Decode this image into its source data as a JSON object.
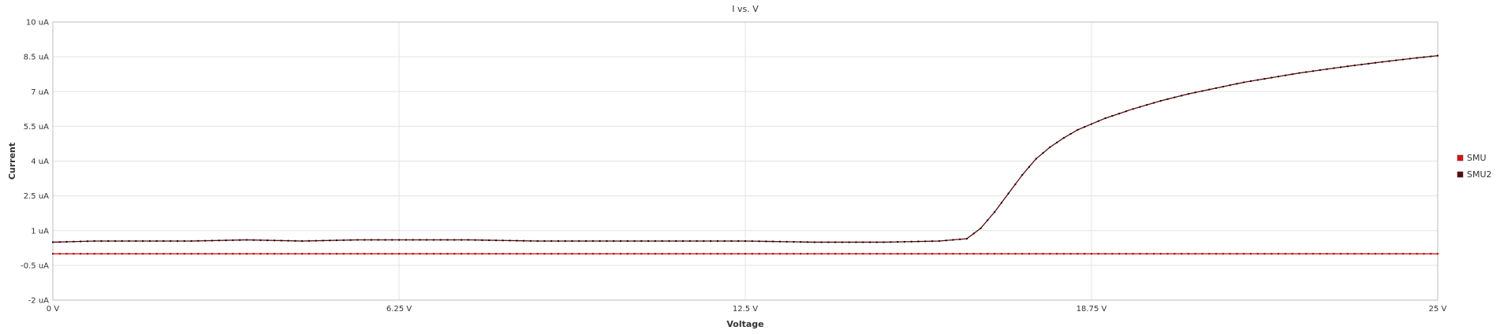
{
  "chart_data": {
    "type": "line",
    "title": "I vs. V",
    "xlabel": "Voltage",
    "ylabel": "Current",
    "xlim": [
      0,
      25
    ],
    "ylim": [
      -2,
      10
    ],
    "x_unit": "V",
    "y_unit": "uA",
    "x_ticks": [
      0,
      6.25,
      12.5,
      18.75,
      25
    ],
    "x_tick_labels": [
      "0 V",
      "6.25 V",
      "12.5 V",
      "18.75 V",
      "25 V"
    ],
    "y_ticks": [
      -2,
      -0.5,
      1,
      2.5,
      4,
      5.5,
      7,
      8.5,
      10
    ],
    "y_tick_labels": [
      "-2 uA",
      "-0.5 uA",
      "1 uA",
      "2.5 uA",
      "4 uA",
      "5.5 uA",
      "7 uA",
      "8.5 uA",
      "10 uA"
    ],
    "grid": true,
    "legend_position": "right",
    "series": [
      {
        "name": "SMU",
        "color": "#e01010",
        "x": [
          0,
          2.5,
          5,
          7.5,
          10,
          12.5,
          15,
          17.5,
          20,
          22.5,
          25
        ],
        "y": [
          0,
          0,
          0,
          0,
          0,
          0,
          0,
          0,
          0,
          0,
          0
        ]
      },
      {
        "name": "SMU2",
        "color": "#5a0a0a",
        "x": [
          0,
          0.75,
          1.5,
          2.5,
          3.5,
          4.5,
          5.5,
          6.25,
          7.5,
          8.75,
          10,
          11.25,
          12.5,
          13.75,
          15,
          16,
          16.5,
          16.75,
          17,
          17.25,
          17.5,
          17.75,
          18,
          18.25,
          18.5,
          18.75,
          19,
          19.5,
          20,
          20.5,
          21,
          21.5,
          22,
          22.5,
          23,
          23.5,
          24,
          24.5,
          25
        ],
        "y": [
          0.5,
          0.55,
          0.55,
          0.55,
          0.6,
          0.55,
          0.6,
          0.6,
          0.6,
          0.55,
          0.55,
          0.55,
          0.55,
          0.5,
          0.5,
          0.55,
          0.65,
          1.1,
          1.8,
          2.6,
          3.4,
          4.1,
          4.6,
          5.0,
          5.35,
          5.6,
          5.85,
          6.25,
          6.6,
          6.9,
          7.15,
          7.4,
          7.6,
          7.8,
          7.97,
          8.13,
          8.28,
          8.42,
          8.55
        ]
      }
    ]
  }
}
